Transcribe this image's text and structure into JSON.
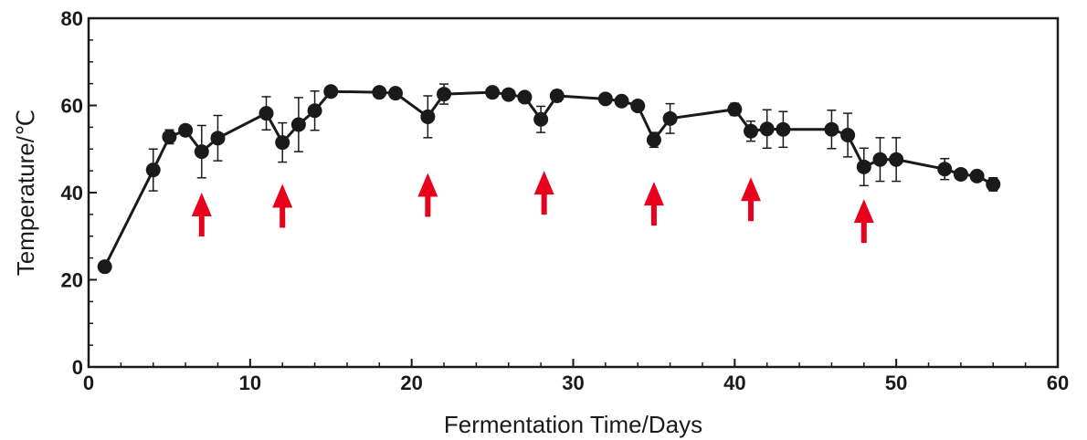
{
  "chart_data": {
    "type": "line",
    "title": "",
    "xlabel": "Fermentation Time/Days",
    "ylabel": "Temperature/℃",
    "xlim": [
      0,
      60
    ],
    "ylim": [
      0,
      80
    ],
    "x_ticks": [
      "0",
      "10",
      "20",
      "30",
      "40",
      "50",
      "60"
    ],
    "y_ticks": [
      "0",
      "20",
      "40",
      "60",
      "80"
    ],
    "grid": false,
    "colors": {
      "series": "#1a1a1a",
      "arrows": "#e8001c"
    },
    "series": [
      {
        "x": [
          1,
          4,
          5,
          6,
          7,
          8,
          11,
          12,
          13,
          14,
          15,
          18,
          19,
          21,
          22,
          25,
          26,
          27,
          28,
          29,
          32,
          33,
          34,
          35,
          36,
          40,
          41,
          42,
          43,
          46,
          47,
          48,
          49,
          50,
          53,
          54,
          55,
          56
        ],
        "y": [
          23,
          45.2,
          52.8,
          54.3,
          49.4,
          52.5,
          58.2,
          51.5,
          55.6,
          58.8,
          63.2,
          63,
          62.8,
          57.4,
          62.6,
          63,
          62.5,
          61.9,
          56.8,
          62.2,
          61.5,
          61,
          59.9,
          52.1,
          57,
          59.1,
          54.1,
          54.6,
          54.5,
          54.5,
          53.2,
          45.9,
          47.6,
          47.6,
          45.4,
          44.2,
          43.8,
          41.9
        ],
        "error": [
          0,
          4.8,
          1.6,
          0,
          6,
          5.2,
          3.8,
          4.5,
          6.2,
          4.5,
          0,
          0,
          0,
          4.8,
          2.3,
          0,
          0,
          0,
          3,
          1.3,
          0,
          0,
          0,
          1.7,
          3.4,
          1.4,
          2.3,
          4.4,
          4.1,
          4.4,
          5,
          4.3,
          5,
          5,
          2.4,
          0,
          0,
          1.5
        ]
      }
    ],
    "annotations": {
      "type": "upward-arrow",
      "points": [
        {
          "x": 7,
          "y": 40
        },
        {
          "x": 12,
          "y": 42
        },
        {
          "x": 21,
          "y": 44.5
        },
        {
          "x": 28.2,
          "y": 45
        },
        {
          "x": 35,
          "y": 42.5
        },
        {
          "x": 41,
          "y": 43.5
        },
        {
          "x": 48,
          "y": 38.5
        }
      ]
    }
  }
}
